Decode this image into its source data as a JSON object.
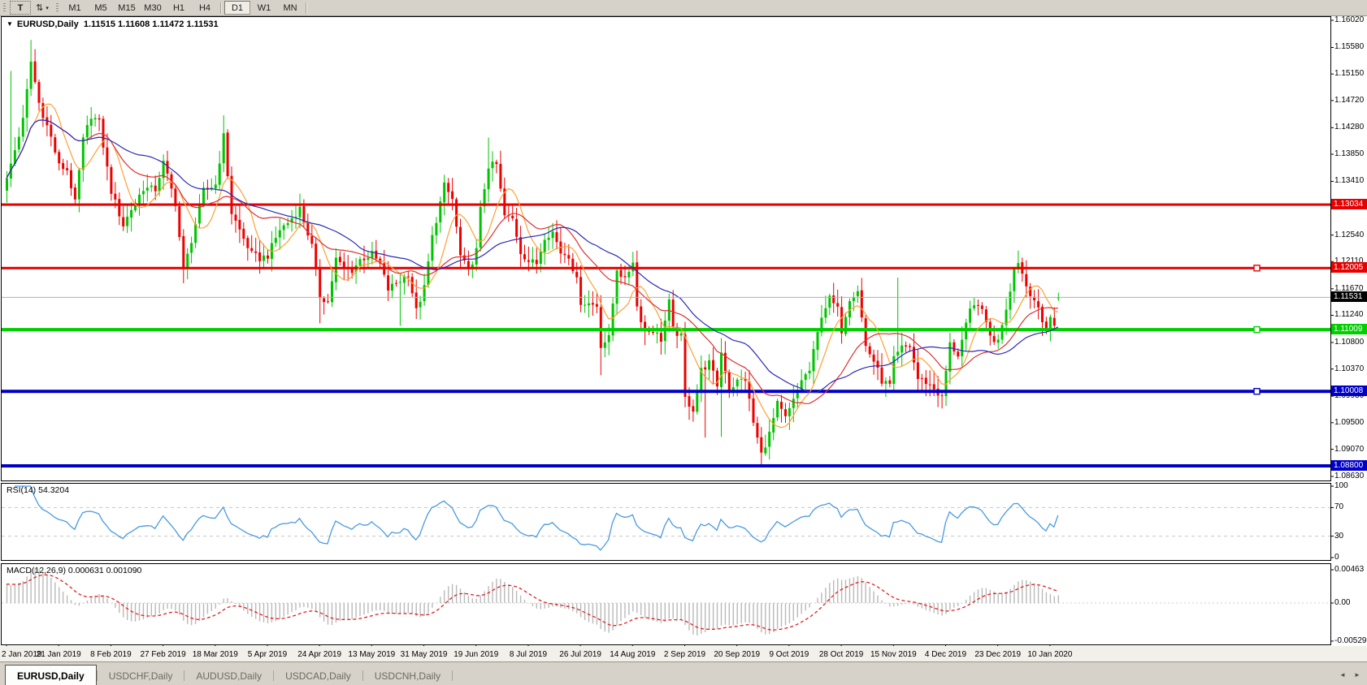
{
  "toolbar": {
    "text_tool_label": "T",
    "style_tool_dropdown": "▾",
    "timeframes": [
      "M1",
      "M5",
      "M15",
      "M30",
      "H1",
      "H4",
      "D1",
      "W1",
      "MN"
    ],
    "active_timeframe": "D1"
  },
  "chart": {
    "title": {
      "dropdown_triangle": "▼",
      "symbol": "EURUSD,Daily",
      "ohlc": "1.11515 1.11608 1.11472 1.11531"
    },
    "price_axis_ticks": [
      "1.16020",
      "1.15580",
      "1.15150",
      "1.14720",
      "1.14280",
      "1.13850",
      "1.13410",
      "1.12980",
      "1.12540",
      "1.12110",
      "1.11670",
      "1.11240",
      "1.10800",
      "1.10370",
      "1.09930",
      "1.09500",
      "1.09070",
      "1.08630"
    ],
    "current_price_badge": "1.11531",
    "horizontal_lines": [
      {
        "label": "1.13034",
        "value": 1.13034,
        "color": "#e60000",
        "width": 3,
        "handle": false
      },
      {
        "label": "1.12005",
        "value": 1.12005,
        "color": "#e60000",
        "width": 3,
        "handle": true
      },
      {
        "label": "1.11009",
        "value": 1.11009,
        "color": "#00d000",
        "width": 4,
        "handle": true
      },
      {
        "label": "1.10008",
        "value": 1.10008,
        "color": "#0000c8",
        "width": 4,
        "handle": true
      },
      {
        "label": "1.08800",
        "value": 1.088,
        "color": "#0000c8",
        "width": 4,
        "handle": false
      }
    ],
    "date_axis": [
      "2 Jan 2019",
      "21 Jan 2019",
      "8 Feb 2019",
      "27 Feb 2019",
      "18 Mar 2019",
      "5 Apr 2019",
      "24 Apr 2019",
      "13 May 2019",
      "31 May 2019",
      "19 Jun 2019",
      "8 Jul 2019",
      "26 Jul 2019",
      "14 Aug 2019",
      "2 Sep 2019",
      "20 Sep 2019",
      "9 Oct 2019",
      "28 Oct 2019",
      "15 Nov 2019",
      "4 Dec 2019",
      "23 Dec 2019",
      "10 Jan 2020"
    ]
  },
  "rsi_panel": {
    "name": "RSI(14)",
    "value": "54.3204",
    "ticks": [
      "100",
      "70",
      "30",
      "0"
    ],
    "tick_values": [
      100,
      70,
      30,
      0
    ],
    "dashed_levels": [
      70,
      30
    ]
  },
  "macd_panel": {
    "name": "MACD(12,26,9)",
    "values": "0.000631 0.001090",
    "ticks": [
      "0.00463",
      "0.00",
      "-0.005299"
    ],
    "tick_values": [
      0.00463,
      0,
      -0.005299
    ]
  },
  "tabs": {
    "items": [
      "EURUSD,Daily",
      "USDCHF,Daily",
      "AUDUSD,Daily",
      "USDCAD,Daily",
      "USDCNH,Daily"
    ],
    "active": "EURUSD,Daily",
    "scroll_left": "◄",
    "scroll_right": "►"
  },
  "colors": {
    "candle_up": "#00c400",
    "candle_down": "#ee0000",
    "ma_fast": "#ffa033",
    "ma_mid": "#dd3030",
    "ma_slow": "#2a2ab8",
    "rsi_line": "#4a9ae0",
    "macd_hist": "#b9b9b9",
    "macd_signal": "#e02020",
    "current_price_line": "#b0b0b0",
    "badge_black": "#000000",
    "level_red": "#e60000",
    "level_green": "#00d000",
    "level_blue": "#0000c8"
  },
  "chart_data": {
    "type": "candlestick",
    "symbol": "EURUSD",
    "timeframe": "Daily",
    "bars_total": 263,
    "current_bar": {
      "open": 1.11515,
      "high": 1.11608,
      "low": 1.11472,
      "close": 1.11531
    },
    "ylim": [
      1.0863,
      1.1602
    ],
    "close_anchors": [
      [
        0,
        1.1346
      ],
      [
        2,
        1.1392
      ],
      [
        4,
        1.144
      ],
      [
        6,
        1.1535
      ],
      [
        8,
        1.1468
      ],
      [
        11,
        1.1412
      ],
      [
        13,
        1.1366
      ],
      [
        15,
        1.136
      ],
      [
        17,
        1.1306
      ],
      [
        19,
        1.1408
      ],
      [
        21,
        1.1448
      ],
      [
        23,
        1.1436
      ],
      [
        26,
        1.1325
      ],
      [
        29,
        1.127
      ],
      [
        31,
        1.1296
      ],
      [
        34,
        1.133
      ],
      [
        37,
        1.1328
      ],
      [
        39,
        1.1371
      ],
      [
        42,
        1.1306
      ],
      [
        44,
        1.1196
      ],
      [
        46,
        1.1246
      ],
      [
        49,
        1.1326
      ],
      [
        52,
        1.1336
      ],
      [
        54,
        1.1414
      ],
      [
        56,
        1.129
      ],
      [
        59,
        1.1248
      ],
      [
        61,
        1.1223
      ],
      [
        63,
        1.1216
      ],
      [
        65,
        1.1221
      ],
      [
        68,
        1.1263
      ],
      [
        70,
        1.1274
      ],
      [
        73,
        1.1297
      ],
      [
        76,
        1.1236
      ],
      [
        78,
        1.1155
      ],
      [
        80,
        1.1146
      ],
      [
        82,
        1.1215
      ],
      [
        84,
        1.1199
      ],
      [
        86,
        1.1197
      ],
      [
        88,
        1.1214
      ],
      [
        91,
        1.1223
      ],
      [
        93,
        1.1206
      ],
      [
        95,
        1.1166
      ],
      [
        98,
        1.1181
      ],
      [
        100,
        1.1192
      ],
      [
        102,
        1.1131
      ],
      [
        104,
        1.1168
      ],
      [
        106,
        1.1251
      ],
      [
        109,
        1.1334
      ],
      [
        111,
        1.1312
      ],
      [
        113,
        1.122
      ],
      [
        115,
        1.1195
      ],
      [
        117,
        1.1229
      ],
      [
        118,
        1.1295
      ],
      [
        120,
        1.1366
      ],
      [
        122,
        1.1368
      ],
      [
        124,
        1.1285
      ],
      [
        126,
        1.128
      ],
      [
        128,
        1.1227
      ],
      [
        130,
        1.1212
      ],
      [
        132,
        1.1208
      ],
      [
        134,
        1.1252
      ],
      [
        136,
        1.1259
      ],
      [
        138,
        1.1226
      ],
      [
        140,
        1.1221
      ],
      [
        142,
        1.118
      ],
      [
        143,
        1.1146
      ],
      [
        145,
        1.1143
      ],
      [
        147,
        1.114
      ],
      [
        148,
        1.1076
      ],
      [
        150,
        1.1087
      ],
      [
        152,
        1.12
      ],
      [
        154,
        1.118
      ],
      [
        156,
        1.1213
      ],
      [
        157,
        1.1138
      ],
      [
        159,
        1.1098
      ],
      [
        161,
        1.11
      ],
      [
        163,
        1.1085
      ],
      [
        165,
        1.1145
      ],
      [
        166,
        1.1101
      ],
      [
        168,
        1.1089
      ],
      [
        169,
        1.0989
      ],
      [
        171,
        1.0972
      ],
      [
        173,
        1.1035
      ],
      [
        175,
        1.1047
      ],
      [
        177,
        1.1011
      ],
      [
        178,
        1.1064
      ],
      [
        180,
        1.1004
      ],
      [
        182,
        1.1017
      ],
      [
        184,
        1.1021
      ],
      [
        186,
        1.095
      ],
      [
        188,
        1.0899
      ],
      [
        190,
        1.0932
      ],
      [
        192,
        1.098
      ],
      [
        194,
        1.0957
      ],
      [
        196,
        1.0985
      ],
      [
        198,
        1.102
      ],
      [
        200,
        1.1034
      ],
      [
        203,
        1.1125
      ],
      [
        205,
        1.1151
      ],
      [
        207,
        1.1133
      ],
      [
        208,
        1.11
      ],
      [
        210,
        1.1152
      ],
      [
        212,
        1.1166
      ],
      [
        214,
        1.1074
      ],
      [
        216,
        1.105
      ],
      [
        218,
        1.1018
      ],
      [
        220,
        1.101
      ],
      [
        221,
        1.1052
      ],
      [
        223,
        1.1071
      ],
      [
        225,
        1.1074
      ],
      [
        227,
        1.1021
      ],
      [
        229,
        1.1016
      ],
      [
        231,
        1.1005
      ],
      [
        233,
        1.099
      ],
      [
        235,
        1.1077
      ],
      [
        237,
        1.106
      ],
      [
        240,
        1.113
      ],
      [
        242,
        1.1145
      ],
      [
        244,
        1.1112
      ],
      [
        246,
        1.1078
      ],
      [
        247,
        1.1088
      ],
      [
        249,
        1.1136
      ],
      [
        251,
        1.1199
      ],
      [
        252,
        1.1212
      ],
      [
        254,
        1.1172
      ],
      [
        256,
        1.115
      ],
      [
        258,
        1.1112
      ],
      [
        259,
        1.1103
      ],
      [
        260,
        1.1122
      ],
      [
        261,
        1.1105
      ],
      [
        262,
        1.11531
      ]
    ],
    "wick_overrides": {
      "1": {
        "h": 1.152
      },
      "6": {
        "h": 1.157
      },
      "44": {
        "l": 1.1176
      },
      "54": {
        "h": 1.1448
      },
      "78": {
        "l": 1.1111
      },
      "98": {
        "l": 1.1107
      },
      "120": {
        "h": 1.1412
      },
      "148": {
        "l": 1.1027
      },
      "174": {
        "l": 1.0926
      },
      "178": {
        "h": 1.1087,
        "l": 1.0927
      },
      "188": {
        "l": 1.0879
      },
      "222": {
        "h": 1.1185
      }
    },
    "moving_averages": [
      {
        "name": "fast",
        "period": 8,
        "color": "#ffa033"
      },
      {
        "name": "mid",
        "period": 21,
        "color": "#dd3030"
      },
      {
        "name": "slow",
        "period": 34,
        "color": "#2a2ab8"
      }
    ],
    "indicators": {
      "rsi": {
        "period": 14,
        "last_value": 54.3204
      },
      "macd": {
        "fast": 12,
        "slow": 26,
        "signal": 9,
        "last_values": [
          0.000631,
          0.00109
        ]
      }
    }
  }
}
